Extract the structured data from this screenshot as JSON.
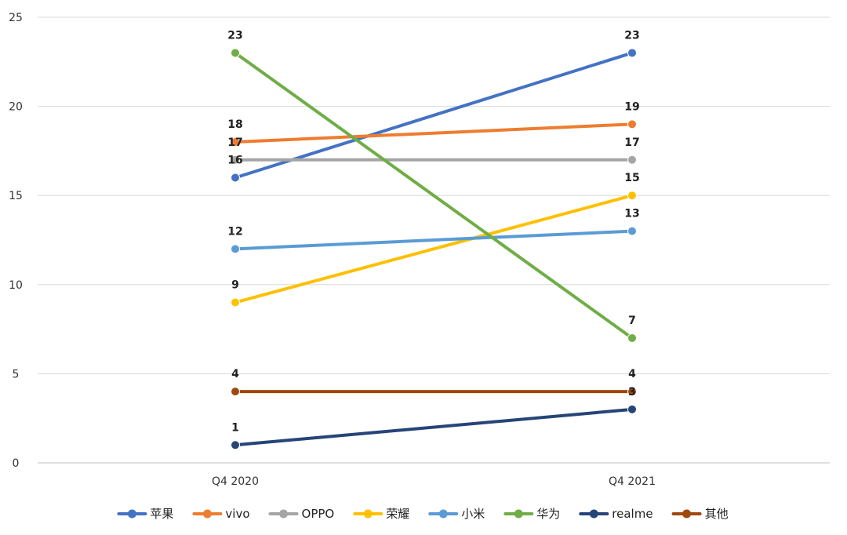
{
  "chart_data": {
    "type": "line",
    "title": "",
    "xlabel": "",
    "ylabel": "",
    "ylim": [
      0,
      25
    ],
    "yticks": [
      0,
      5,
      10,
      15,
      20,
      25
    ],
    "grid": true,
    "legend_position": "bottom",
    "categories": [
      "Q4 2020",
      "Q4 2021"
    ],
    "series": [
      {
        "name": "苹果",
        "values": [
          16,
          23
        ],
        "color": "#4472C4"
      },
      {
        "name": "vivo",
        "values": [
          18,
          19
        ],
        "color": "#ED7D31"
      },
      {
        "name": "OPPO",
        "values": [
          17,
          17
        ],
        "color": "#A5A5A5"
      },
      {
        "name": "荣耀",
        "values": [
          9,
          15
        ],
        "color": "#FFC000"
      },
      {
        "name": "小米",
        "values": [
          12,
          13
        ],
        "color": "#5B9BD5"
      },
      {
        "name": "华为",
        "values": [
          23,
          7
        ],
        "color": "#70AD47"
      },
      {
        "name": "realme",
        "values": [
          1,
          3
        ],
        "color": "#264478"
      },
      {
        "name": "其他",
        "values": [
          4,
          4
        ],
        "color": "#9E480E"
      }
    ],
    "data_labels": [
      {
        "category": 0,
        "text": "23",
        "value": 23
      },
      {
        "category": 0,
        "text": "18",
        "value": 18
      },
      {
        "category": 0,
        "text": "17",
        "value": 17
      },
      {
        "category": 0,
        "text": "16",
        "value": 16
      },
      {
        "category": 0,
        "text": "12",
        "value": 12
      },
      {
        "category": 0,
        "text": "9",
        "value": 9
      },
      {
        "category": 0,
        "text": "4",
        "value": 4
      },
      {
        "category": 0,
        "text": "1",
        "value": 1
      },
      {
        "category": 1,
        "text": "23",
        "value": 23
      },
      {
        "category": 1,
        "text": "19",
        "value": 19
      },
      {
        "category": 1,
        "text": "17",
        "value": 17
      },
      {
        "category": 1,
        "text": "15",
        "value": 15
      },
      {
        "category": 1,
        "text": "13",
        "value": 13
      },
      {
        "category": 1,
        "text": "7",
        "value": 7
      },
      {
        "category": 1,
        "text": "4",
        "value": 4
      },
      {
        "category": 1,
        "text": "3",
        "value": 3
      }
    ]
  }
}
